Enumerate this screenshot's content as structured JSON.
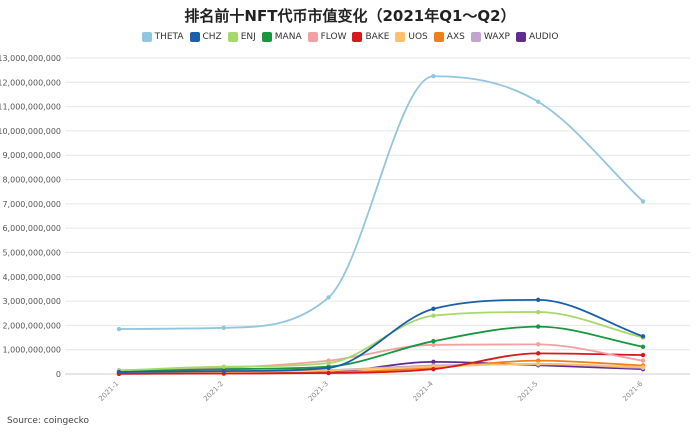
{
  "chart_data": {
    "type": "line",
    "title": "排名前十NFT代币市值变化（2021年Q1～Q2）",
    "source": "Source: coingecko",
    "categories": [
      "2021-1",
      "2021-2",
      "2021-3",
      "2021-4",
      "2021-5",
      "2021-6"
    ],
    "yticks": [
      "0",
      "1,000,000,000",
      "2,000,000,000",
      "3,000,000,000",
      "4,000,000,000",
      "5,000,000,000",
      "6,000,000,000",
      "7,000,000,000",
      "8,000,000,000",
      "9,000,000,000",
      "10,000,000,000",
      "11,000,000,000",
      "12,000,000,000",
      "13,000,000,000"
    ],
    "ylim": [
      0,
      13000000000
    ],
    "grid": true,
    "legend_position": "top-center",
    "series": [
      {
        "name": "THETA",
        "color": "#92c5de",
        "values": [
          1850000000,
          1900000000,
          3150000000,
          12250000000,
          11200000000,
          7100000000
        ]
      },
      {
        "name": "CHZ",
        "color": "#1a5fa8",
        "values": [
          80000000,
          120000000,
          250000000,
          2680000000,
          3050000000,
          1550000000
        ]
      },
      {
        "name": "ENJ",
        "color": "#a6d96a",
        "values": [
          150000000,
          300000000,
          450000000,
          2400000000,
          2550000000,
          1500000000
        ]
      },
      {
        "name": "MANA",
        "color": "#1a9641",
        "values": [
          100000000,
          200000000,
          300000000,
          1350000000,
          1950000000,
          1120000000
        ]
      },
      {
        "name": "FLOW",
        "color": "#f4a0a0",
        "values": [
          150000000,
          250000000,
          550000000,
          1200000000,
          1220000000,
          550000000
        ]
      },
      {
        "name": "BAKE",
        "color": "#d7191c",
        "values": [
          10000000,
          20000000,
          40000000,
          200000000,
          850000000,
          780000000
        ]
      },
      {
        "name": "UOS",
        "color": "#fdc06e",
        "values": [
          50000000,
          80000000,
          150000000,
          300000000,
          420000000,
          280000000
        ]
      },
      {
        "name": "AXS",
        "color": "#f07f16",
        "values": [
          10000000,
          30000000,
          60000000,
          250000000,
          550000000,
          350000000
        ]
      },
      {
        "name": "WAXP",
        "color": "#c2a5cf",
        "values": [
          80000000,
          110000000,
          160000000,
          350000000,
          400000000,
          250000000
        ]
      },
      {
        "name": "AUDIO",
        "color": "#5e2d91",
        "values": [
          10000000,
          30000000,
          70000000,
          500000000,
          360000000,
          200000000
        ]
      }
    ]
  }
}
